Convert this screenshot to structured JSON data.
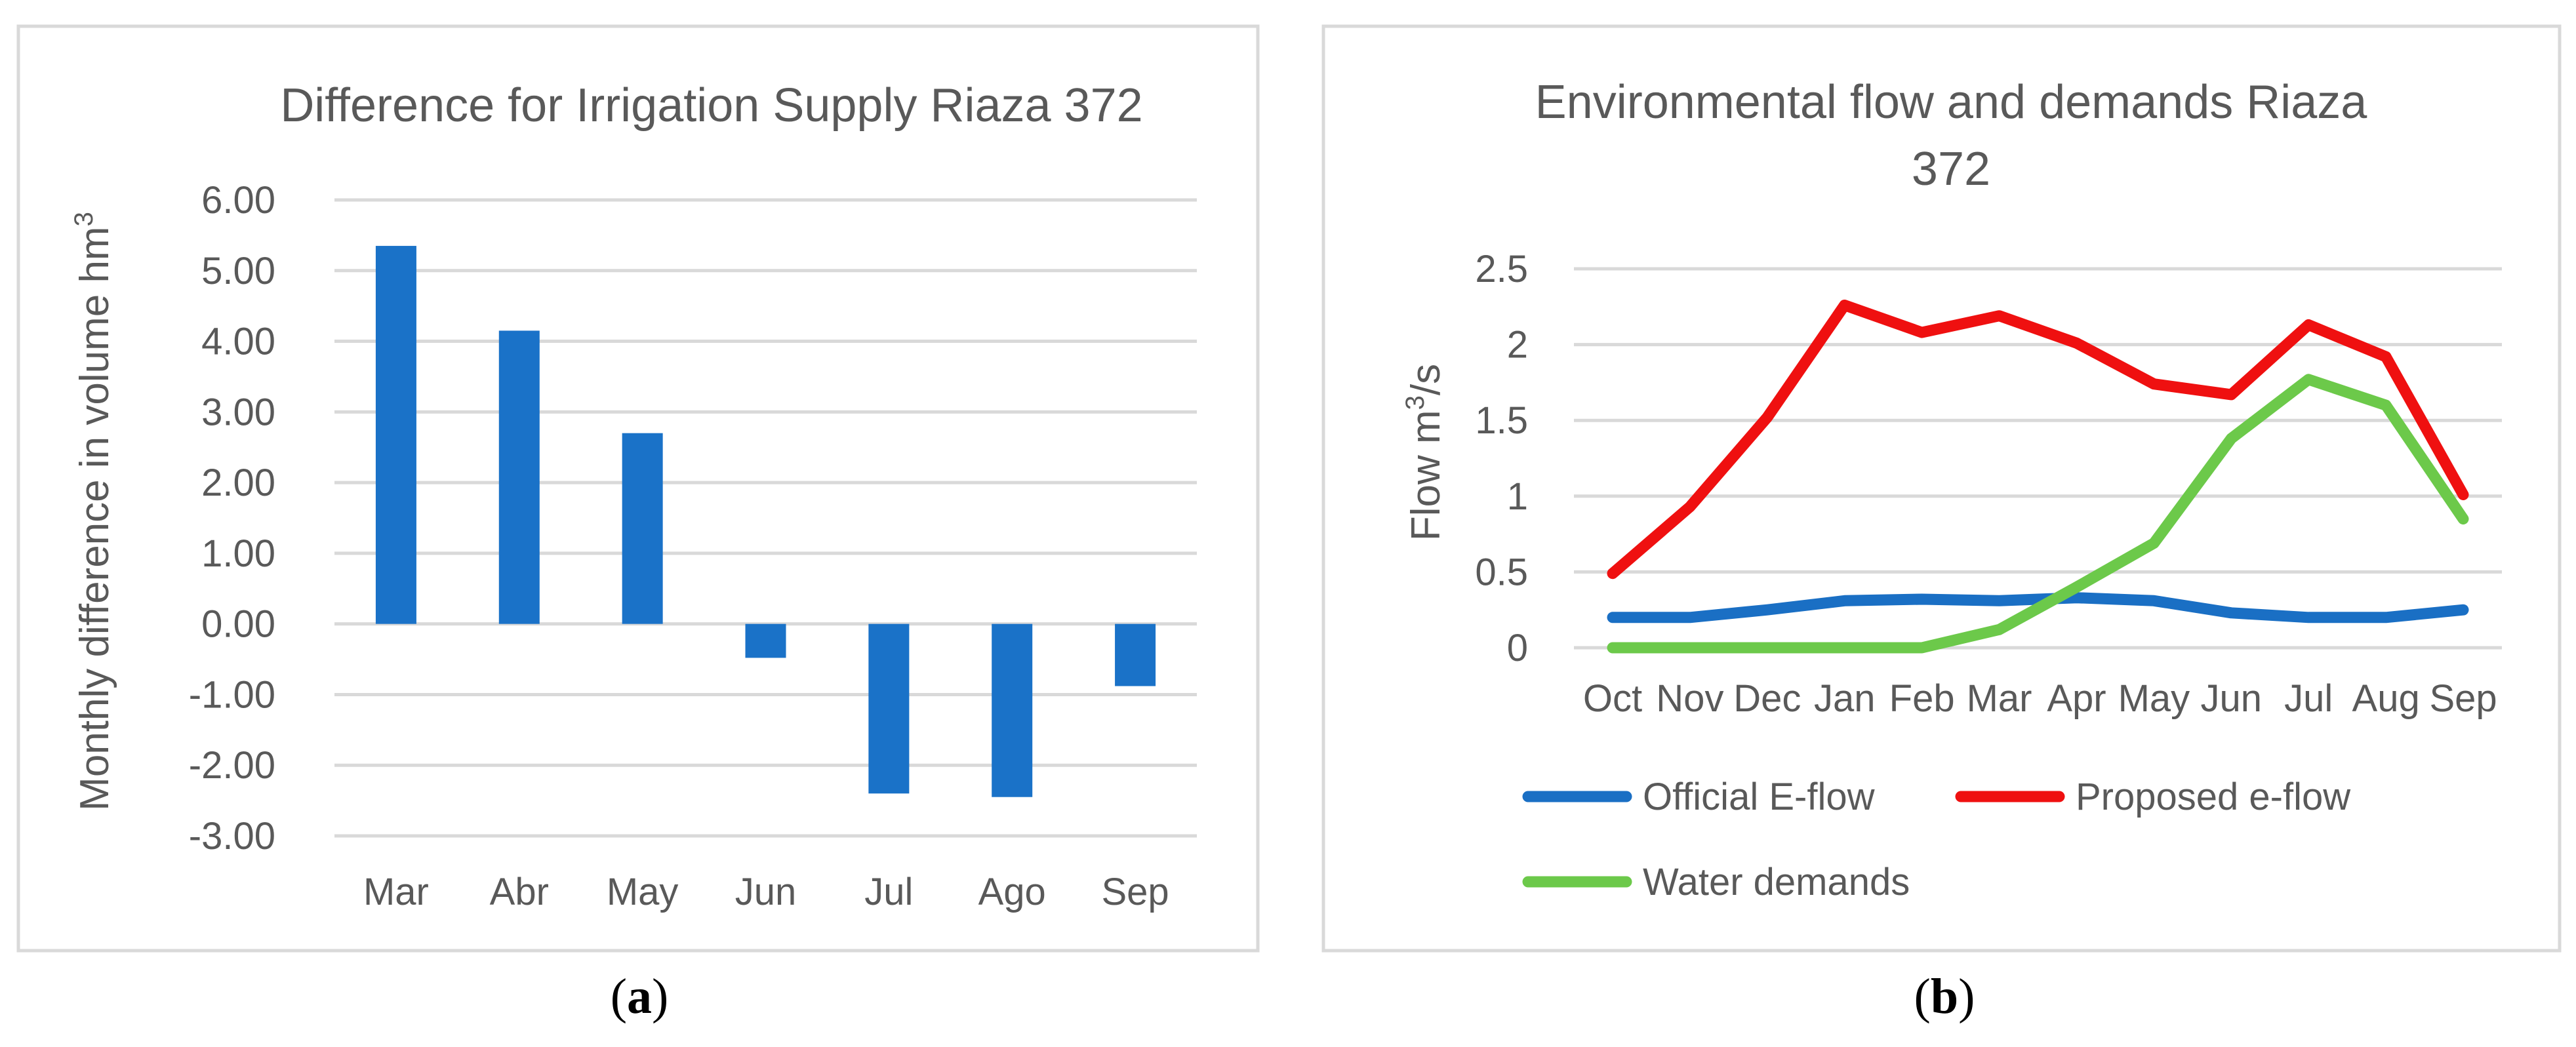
{
  "colors": {
    "bar": "#1a72c8",
    "official": "#1a6fc4",
    "proposed": "#ef1010",
    "demands": "#6cc94a"
  },
  "chart_data": [
    {
      "type": "bar",
      "title": "Difference for Irrigation Supply Riaza 372",
      "xlabel": "",
      "ylabel_main": "Monthly difference in volume hm",
      "ylabel_sup": "3",
      "categories": [
        "Mar",
        "Abr",
        "May",
        "Jun",
        "Jul",
        "Ago",
        "Sep"
      ],
      "values": [
        5.35,
        4.15,
        2.7,
        -0.48,
        -2.4,
        -2.45,
        -0.88
      ],
      "ylim": [
        -3,
        6
      ],
      "yticks": [
        6,
        5,
        4,
        3,
        2,
        1,
        0,
        -1,
        -2,
        -3
      ],
      "ytick_labels": [
        "6.00",
        "5.00",
        "4.00",
        "3.00",
        "2.00",
        "1.00",
        "0.00",
        "-1.00",
        "-2.00",
        "-3.00"
      ],
      "panel_label": "a"
    },
    {
      "type": "line",
      "title_line1": "Environmental flow and demands Riaza",
      "title_line2": "372",
      "ylabel_main": "Flow m",
      "ylabel_sup": "3",
      "ylabel_tail": "/s",
      "x": [
        "Oct",
        "Nov",
        "Dec",
        "Jan",
        "Feb",
        "Mar",
        "Apr",
        "May",
        "Jun",
        "Jul",
        "Aug",
        "Sep"
      ],
      "ylim": [
        0,
        2.5
      ],
      "yticks": [
        2.5,
        2,
        1.5,
        1,
        0.5,
        0
      ],
      "ytick_labels": [
        "2.5",
        "2",
        "1.5",
        "1",
        "0.5",
        "0"
      ],
      "series": [
        {
          "name": "Official E-flow",
          "values": [
            0.2,
            0.2,
            0.25,
            0.31,
            0.32,
            0.31,
            0.33,
            0.31,
            0.23,
            0.2,
            0.2,
            0.25
          ]
        },
        {
          "name": "Proposed e-flow",
          "values": [
            0.49,
            0.93,
            1.52,
            2.26,
            2.08,
            2.19,
            2.01,
            1.74,
            1.67,
            2.13,
            1.92,
            1.01
          ]
        },
        {
          "name": "Water demands",
          "values": [
            0,
            0,
            0,
            0,
            0,
            0.12,
            0.4,
            0.69,
            1.38,
            1.77,
            1.6,
            0.85
          ]
        }
      ],
      "panel_label": "b"
    }
  ]
}
